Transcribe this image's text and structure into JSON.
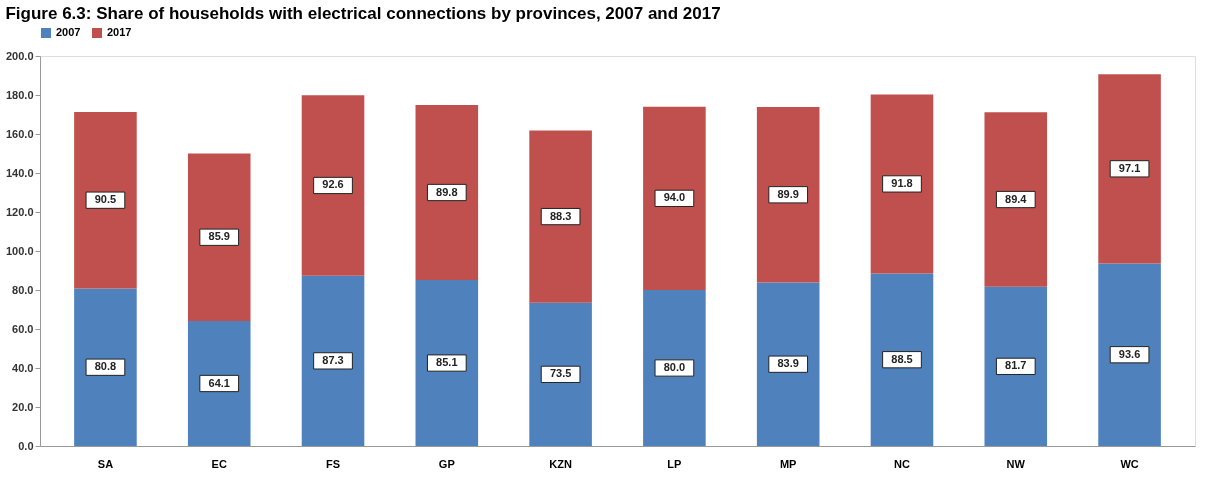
{
  "chart_data": {
    "type": "bar",
    "title": "Figure 6.3: Share of households with electrical connections by provinces, 2007 and 2017",
    "categories": [
      "SA",
      "EC",
      "FS",
      "GP",
      "KZN",
      "LP",
      "MP",
      "NC",
      "NW",
      "WC"
    ],
    "series": [
      {
        "name": "2007",
        "color": "#4f81bd",
        "values": [
          80.8,
          64.1,
          87.3,
          85.1,
          73.5,
          80.0,
          83.9,
          88.5,
          81.7,
          93.6
        ],
        "value_labels": [
          "80.8",
          "64.1",
          "87.3",
          "85.1",
          "73.5",
          "80.0",
          "83.9",
          "88.5",
          "81.7",
          "93.6"
        ]
      },
      {
        "name": "2017",
        "color": "#c0504d",
        "values": [
          90.5,
          85.9,
          92.6,
          89.8,
          88.3,
          94.0,
          89.9,
          91.8,
          89.4,
          97.1
        ],
        "value_labels": [
          "90.5",
          "85.9",
          "92.6",
          "89.8",
          "88.3",
          "94.0",
          "89.9",
          "91.8",
          "89.4",
          "97.1"
        ]
      }
    ],
    "stacked": true,
    "legend": "top",
    "grid": false,
    "ylim": [
      0,
      200
    ],
    "yticks": [
      {
        "value": 0,
        "label": "0.0"
      },
      {
        "value": 20,
        "label": "20.0"
      },
      {
        "value": 40,
        "label": "40.0"
      },
      {
        "value": 60,
        "label": "60.0"
      },
      {
        "value": 80,
        "label": "80.0"
      },
      {
        "value": 100,
        "label": "100.0"
      },
      {
        "value": 120,
        "label": "120.0"
      },
      {
        "value": 140,
        "label": "140.0"
      },
      {
        "value": 160,
        "label": "160.0"
      },
      {
        "value": 180,
        "label": "180.0"
      },
      {
        "value": 200,
        "label": "200.0"
      }
    ]
  }
}
